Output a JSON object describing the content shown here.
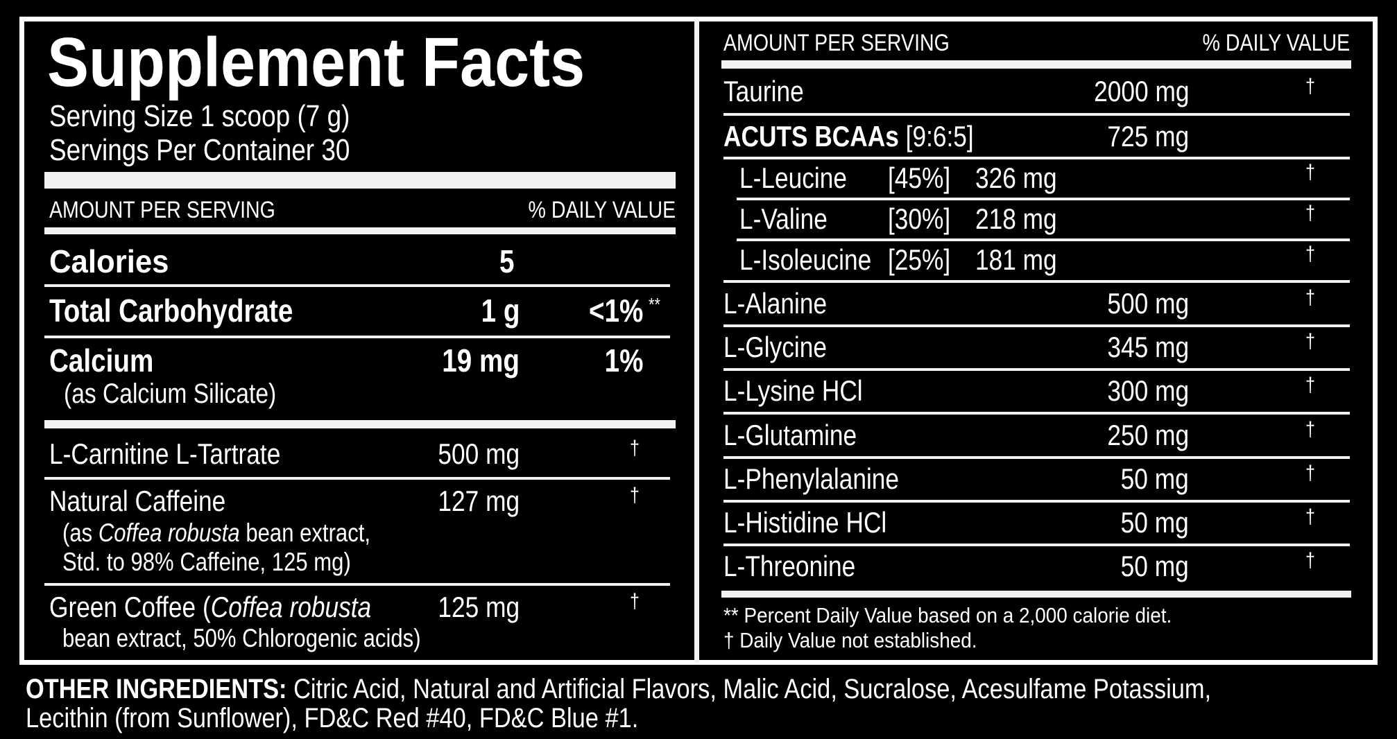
{
  "title": "Supplement Facts",
  "serving_size": "Serving Size 1 scoop (7 g)",
  "servings_per_container": "Servings Per Container 30",
  "header": {
    "amount": "AMOUNT PER SERVING",
    "dv": "% DAILY VALUE"
  },
  "dagger": "†",
  "left": {
    "calories": {
      "name": "Calories",
      "amount": "5"
    },
    "carb": {
      "name": "Total Carbohydrate",
      "amount": "1 g",
      "dv": "<1%",
      "mark": "**"
    },
    "calcium": {
      "name": "Calcium",
      "amount": "19 mg",
      "dv": "1%",
      "sub": "(as Calcium Silicate)"
    },
    "carnitine": {
      "name": "L-Carnitine L-Tartrate",
      "amount": "500 mg"
    },
    "caffeine": {
      "name": "Natural Caffeine",
      "amount": "127 mg",
      "sub1_pre": "(as ",
      "sub1_italic": "Coffea robusta",
      "sub1_post": " bean extract,",
      "sub2": "Std. to 98% Caffeine, 125 mg)"
    },
    "green": {
      "name_pre": "Green Coffee (",
      "name_italic": "Coffea robusta",
      "amount": "125 mg",
      "sub": "bean extract, 50% Chlorogenic acids)"
    }
  },
  "right": {
    "taurine": {
      "name": "Taurine",
      "amount": "2000 mg"
    },
    "bcaa": {
      "name": "ACUTS BCAAs",
      "ratio": "[9:6:5]",
      "amount": "725 mg"
    },
    "sub": [
      {
        "name": "L-Leucine",
        "pct": "[45%]",
        "amount": "326 mg"
      },
      {
        "name": "L-Valine",
        "pct": "[30%]",
        "amount": "218 mg"
      },
      {
        "name": "L-Isoleucine",
        "pct": "[25%]",
        "amount": "181 mg"
      }
    ],
    "rows": [
      {
        "name": "L-Alanine",
        "amount": "500 mg"
      },
      {
        "name": "L-Glycine",
        "amount": "345 mg"
      },
      {
        "name": "L-Lysine HCl",
        "amount": "300 mg"
      },
      {
        "name": "L-Glutamine",
        "amount": "250 mg"
      },
      {
        "name": "L-Phenylalanine",
        "amount": "50 mg"
      },
      {
        "name": "L-Histidine HCl",
        "amount": "50 mg"
      },
      {
        "name": "L-Threonine",
        "amount": "50 mg"
      }
    ],
    "footnote1": "** Percent Daily Value based on a 2,000 calorie diet.",
    "footnote2": "† Daily Value not established."
  },
  "other": {
    "label": "OTHER INGREDIENTS:",
    "line1": " Citric Acid, Natural and Artificial Flavors, Malic Acid, Sucralose, Acesulfame Potassium,",
    "line2": "Lecithin (from Sunflower), FD&C Red #40, FD&C Blue #1."
  }
}
